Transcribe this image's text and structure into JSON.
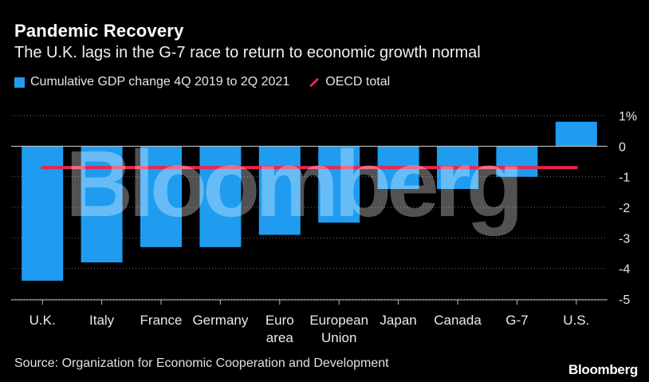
{
  "header": {
    "title": "Pandemic Recovery",
    "subtitle": "The U.K. lags in the G-7 race to return to economic growth normal"
  },
  "legend": {
    "bar_label": "Cumulative GDP change 4Q 2019 to 2Q 2021",
    "line_label": "OECD total"
  },
  "footer": {
    "source": "Source: Organization for Economic Cooperation and Development",
    "brand": "Bloomberg"
  },
  "watermark": "Bloomberg",
  "colors": {
    "bar": "#1f9cf0",
    "reference_line": "#e8264f",
    "background": "#000000",
    "grid": "#6e6e6e"
  },
  "chart_data": {
    "type": "bar",
    "title": "Pandemic Recovery",
    "categories": [
      [
        "U.K."
      ],
      [
        "Italy"
      ],
      [
        "France"
      ],
      [
        "Germany"
      ],
      [
        "Euro",
        "area"
      ],
      [
        "European",
        "Union"
      ],
      [
        "Japan"
      ],
      [
        "Canada"
      ],
      [
        "G-7"
      ],
      [
        "U.S."
      ]
    ],
    "series": [
      {
        "name": "Cumulative GDP change 4Q 2019 to 2Q 2021",
        "values": [
          -4.4,
          -3.8,
          -3.3,
          -3.3,
          -2.9,
          -2.5,
          -1.4,
          -1.4,
          -1.0,
          0.8
        ]
      }
    ],
    "reference_line": {
      "name": "OECD total",
      "value": -0.7
    },
    "ylim": [
      -5,
      1
    ],
    "yticks": [
      1,
      0,
      -1,
      -2,
      -3,
      -4,
      -5
    ],
    "ytick_labels": [
      "1%",
      "0",
      "-1",
      "-2",
      "-3",
      "-4",
      "-5"
    ],
    "grid": "dotted",
    "xlabel": "",
    "ylabel": ""
  }
}
